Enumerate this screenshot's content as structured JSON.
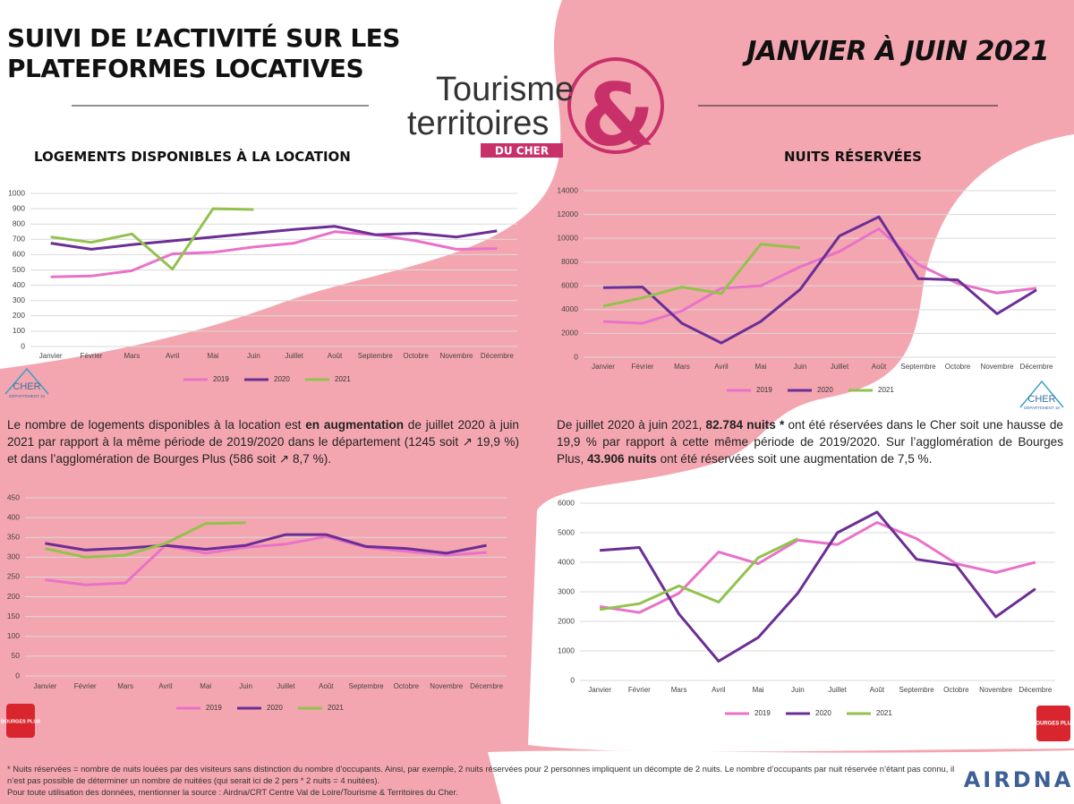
{
  "header": {
    "title_line1": "SUIVI DE L’ACTIVITÉ SUR LES",
    "title_line2": "PLATEFORMES LOCATIVES",
    "period": "JANVIER À JUIN 2021"
  },
  "logo": {
    "word1": "Tourisme",
    "word2": "territoires",
    "ampersand": "&",
    "tag": "DU CHER"
  },
  "cher_logo": {
    "name": "CHER",
    "sub": "DÉPARTEMENT 18"
  },
  "bourges_logo": "BOURGES PLUS",
  "paragraph1": {
    "parts": [
      "Le nombre de logements disponibles à la location est ",
      "en augmentation",
      " de juillet 2020 à juin 2021 par rapport à la même période de 2019/2020 dans le département (1245 soit ↗ 19,9 %) et dans l’agglomération de Bourges Plus (586 soit ↗ 8,7 %)."
    ]
  },
  "paragraph2": {
    "parts": [
      "De juillet 2020 à juin 2021, ",
      "82.784 nuits *",
      " ont été réservées dans le Cher soit une hausse de 19,9 % par rapport à cette même période de 2019/2020. Sur l’agglomération de Bourges Plus, ",
      "43.906 nuits",
      " ont été réservées soit une augmentation de 7,5 %."
    ]
  },
  "footnote": {
    "line1": "* Nuits réservées = nombre de nuits louées par des visiteurs sans distinction du nombre d’occupants. Ainsi, par exemple, 2 nuits réservées pour 2 personnes impliquent un décompte de 2 nuits. Le nombre d’occupants par nuit réservée n’étant pas connu, il n’est pas possible de déterminer un nombre de nuitées (qui serait ici de 2 pers * 2 nuits = 4 nuitées).",
    "line2": "Pour toute utilisation des données, mentionner la source : Airdna/CRT Centre Val de Loire/Tourisme & Territoires du Cher."
  },
  "brand": "AIRDNA",
  "chart_data": [
    {
      "type": "line",
      "title": "LOGEMENTS DISPONIBLES À LA LOCATION",
      "categories": [
        "Janvier",
        "Février",
        "Mars",
        "Avril",
        "Mai",
        "Juin",
        "Juillet",
        "Août",
        "Septembre",
        "Octobre",
        "Novembre",
        "Décembre"
      ],
      "ylim": [
        0,
        1000
      ],
      "yticks": [
        0,
        100,
        200,
        300,
        400,
        500,
        600,
        700,
        800,
        900,
        1000
      ],
      "grid": true,
      "series": [
        {
          "name": "2019",
          "color": "#e872c9",
          "values": [
            455,
            460,
            495,
            605,
            615,
            650,
            675,
            750,
            730,
            690,
            635,
            640
          ]
        },
        {
          "name": "2020",
          "color": "#6b2e95",
          "values": [
            675,
            635,
            665,
            690,
            715,
            740,
            765,
            785,
            730,
            740,
            715,
            755
          ]
        },
        {
          "name": "2021",
          "color": "#92c24d",
          "values": [
            715,
            680,
            735,
            505,
            900,
            895,
            null,
            null,
            null,
            null,
            null,
            null
          ]
        }
      ]
    },
    {
      "type": "line",
      "title": "NUITS RÉSERVÉES",
      "categories": [
        "Janvier",
        "Février",
        "Mars",
        "Avril",
        "Mai",
        "Juin",
        "Juillet",
        "Août",
        "Septembre",
        "Octobre",
        "Novembre",
        "Décembre"
      ],
      "ylim": [
        0,
        14000
      ],
      "yticks": [
        0,
        2000,
        4000,
        6000,
        8000,
        10000,
        12000,
        14000
      ],
      "grid": true,
      "series": [
        {
          "name": "2019",
          "color": "#e872c9",
          "values": [
            3000,
            2850,
            3900,
            5800,
            6000,
            7600,
            8900,
            10800,
            7800,
            6200,
            5400,
            5800
          ]
        },
        {
          "name": "2020",
          "color": "#6b2e95",
          "values": [
            5850,
            5900,
            2850,
            1200,
            3000,
            5700,
            10200,
            11800,
            6600,
            6500,
            3650,
            5650
          ]
        },
        {
          "name": "2021",
          "color": "#92c24d",
          "values": [
            4300,
            5000,
            5900,
            5350,
            9500,
            9200,
            null,
            null,
            null,
            null,
            null,
            null
          ]
        }
      ]
    },
    {
      "type": "line",
      "categories": [
        "Janvier",
        "Février",
        "Mars",
        "Avril",
        "Mai",
        "Juin",
        "Juillet",
        "Août",
        "Septembre",
        "Octobre",
        "Novembre",
        "Décembre"
      ],
      "ylim": [
        0,
        450
      ],
      "yticks": [
        0,
        50,
        100,
        150,
        200,
        250,
        300,
        350,
        400,
        450
      ],
      "grid": true,
      "series": [
        {
          "name": "2019",
          "color": "#e872c9",
          "values": [
            243,
            230,
            235,
            330,
            310,
            325,
            333,
            352,
            325,
            315,
            305,
            312
          ]
        },
        {
          "name": "2020",
          "color": "#6b2e95",
          "values": [
            335,
            318,
            323,
            330,
            320,
            330,
            357,
            357,
            327,
            322,
            310,
            330
          ]
        },
        {
          "name": "2021",
          "color": "#92c24d",
          "values": [
            322,
            300,
            305,
            335,
            385,
            387,
            null,
            null,
            null,
            null,
            null,
            null
          ]
        }
      ]
    },
    {
      "type": "line",
      "categories": [
        "Janvier",
        "Février",
        "Mars",
        "Avril",
        "Mai",
        "Juin",
        "Juillet",
        "Août",
        "Septembre",
        "Octobre",
        "Novembre",
        "Décembre"
      ],
      "ylim": [
        0,
        6000
      ],
      "yticks": [
        0,
        1000,
        2000,
        3000,
        4000,
        5000,
        6000
      ],
      "grid": true,
      "series": [
        {
          "name": "2019",
          "color": "#e872c9",
          "values": [
            2500,
            2300,
            2950,
            4350,
            3950,
            4750,
            4600,
            5350,
            4800,
            3950,
            3650,
            4000
          ]
        },
        {
          "name": "2020",
          "color": "#6b2e95",
          "values": [
            4400,
            4500,
            2250,
            650,
            1450,
            2950,
            5000,
            5700,
            4100,
            3900,
            2150,
            3100
          ]
        },
        {
          "name": "2021",
          "color": "#92c24d",
          "values": [
            2400,
            2600,
            3200,
            2650,
            4150,
            4800,
            null,
            null,
            null,
            null,
            null,
            null
          ]
        }
      ]
    }
  ]
}
